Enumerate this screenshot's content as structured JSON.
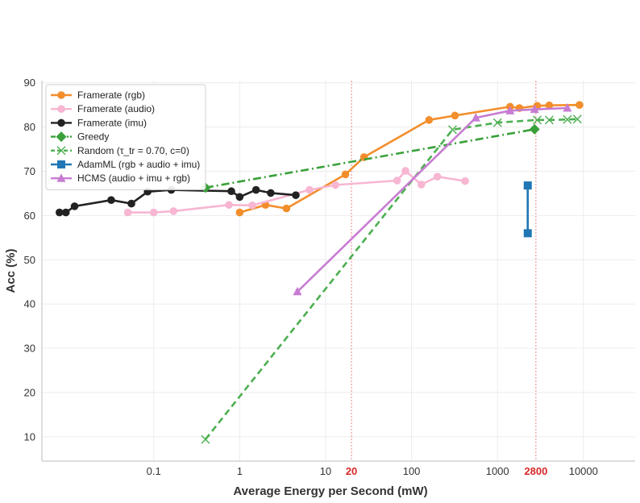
{
  "chart_data": {
    "type": "line",
    "xscale": "log",
    "xlabel": "Average Energy per Second (mW)",
    "ylabel": "Acc (%)",
    "xlim": [
      0.005,
      40000
    ],
    "ylim": [
      4.5,
      90.5
    ],
    "grid": true,
    "legend_position": "top-left",
    "xticks": [
      {
        "value": 0.1,
        "label": "0.1"
      },
      {
        "value": 1,
        "label": "1"
      },
      {
        "value": 10,
        "label": "10"
      },
      {
        "value": 20,
        "label": "20"
      },
      {
        "value": 100,
        "label": "100"
      },
      {
        "value": 1000,
        "label": "1000"
      },
      {
        "value": 2800,
        "label": "2800"
      },
      {
        "value": 10000,
        "label": "10000"
      }
    ],
    "yticks": [
      10,
      20,
      30,
      40,
      50,
      60,
      70,
      80,
      90
    ],
    "highlight_x": [
      {
        "value": 20,
        "label": "20",
        "color": "#d62728"
      },
      {
        "value": 2800,
        "label": "2800",
        "color": "#d62728"
      }
    ],
    "series": [
      {
        "name": "Framerate (rgb)",
        "color": "#f28e2b",
        "marker": "circle",
        "dash": "solid",
        "points": [
          [
            1.0,
            60.7
          ],
          [
            2.0,
            62.4
          ],
          [
            3.5,
            61.6
          ],
          [
            17,
            69.3
          ],
          [
            28,
            73.2
          ],
          [
            160,
            81.6
          ],
          [
            320,
            82.6
          ],
          [
            1400,
            84.6
          ],
          [
            1800,
            84.3
          ],
          [
            2900,
            84.8
          ],
          [
            4000,
            84.9
          ],
          [
            9000,
            85.0
          ]
        ]
      },
      {
        "name": "Framerate (audio)",
        "color": "#f7b6d2",
        "marker": "circle",
        "dash": "solid",
        "points": [
          [
            0.05,
            60.7
          ],
          [
            0.1,
            60.7
          ],
          [
            0.17,
            61.0
          ],
          [
            0.75,
            62.4
          ],
          [
            1.4,
            62.3
          ],
          [
            6.5,
            65.8
          ],
          [
            13,
            66.9
          ],
          [
            68,
            67.9
          ],
          [
            85,
            70.1
          ],
          [
            130,
            67.0
          ],
          [
            200,
            68.8
          ],
          [
            420,
            67.8
          ]
        ]
      },
      {
        "name": "Framerate (imu)",
        "color": "#222222",
        "marker": "circle",
        "dash": "solid",
        "points": [
          [
            0.008,
            60.7
          ],
          [
            0.0095,
            60.7
          ],
          [
            0.012,
            62.1
          ],
          [
            0.032,
            63.5
          ],
          [
            0.055,
            62.7
          ],
          [
            0.085,
            65.4
          ],
          [
            0.16,
            65.8
          ],
          [
            0.8,
            65.5
          ],
          [
            1.0,
            64.2
          ],
          [
            1.55,
            65.8
          ],
          [
            2.3,
            65.1
          ],
          [
            4.5,
            64.6
          ]
        ]
      },
      {
        "name": "Greedy",
        "color": "#3aa13a",
        "marker": "diamond",
        "dash": "dashdot",
        "points": [
          [
            0.4,
            66.3
          ],
          [
            2700,
            79.5
          ]
        ]
      },
      {
        "name": "Random (τ_tr = 0.70, c=0)",
        "color": "#4caf50",
        "marker": "x",
        "dash": "dashed",
        "points": [
          [
            0.4,
            9.4
          ],
          [
            300,
            79.4
          ],
          [
            1000,
            81.0
          ],
          [
            2900,
            81.6
          ],
          [
            4000,
            81.6
          ],
          [
            6500,
            81.7
          ],
          [
            8500,
            81.8
          ]
        ]
      },
      {
        "name": "AdamML (rgb + audio + imu)",
        "color": "#1f77b4",
        "marker": "square",
        "dash": "solid",
        "points": [
          [
            2250,
            56.0
          ],
          [
            2250,
            66.8
          ]
        ]
      },
      {
        "name": "HCMS (audio + imu + rgb)",
        "color": "#c77cd2",
        "marker": "triangle",
        "dash": "solid",
        "points": [
          [
            4.7,
            42.8
          ],
          [
            560,
            82.1
          ],
          [
            1400,
            83.7
          ],
          [
            2700,
            84.0
          ],
          [
            6500,
            84.3
          ]
        ]
      }
    ]
  }
}
